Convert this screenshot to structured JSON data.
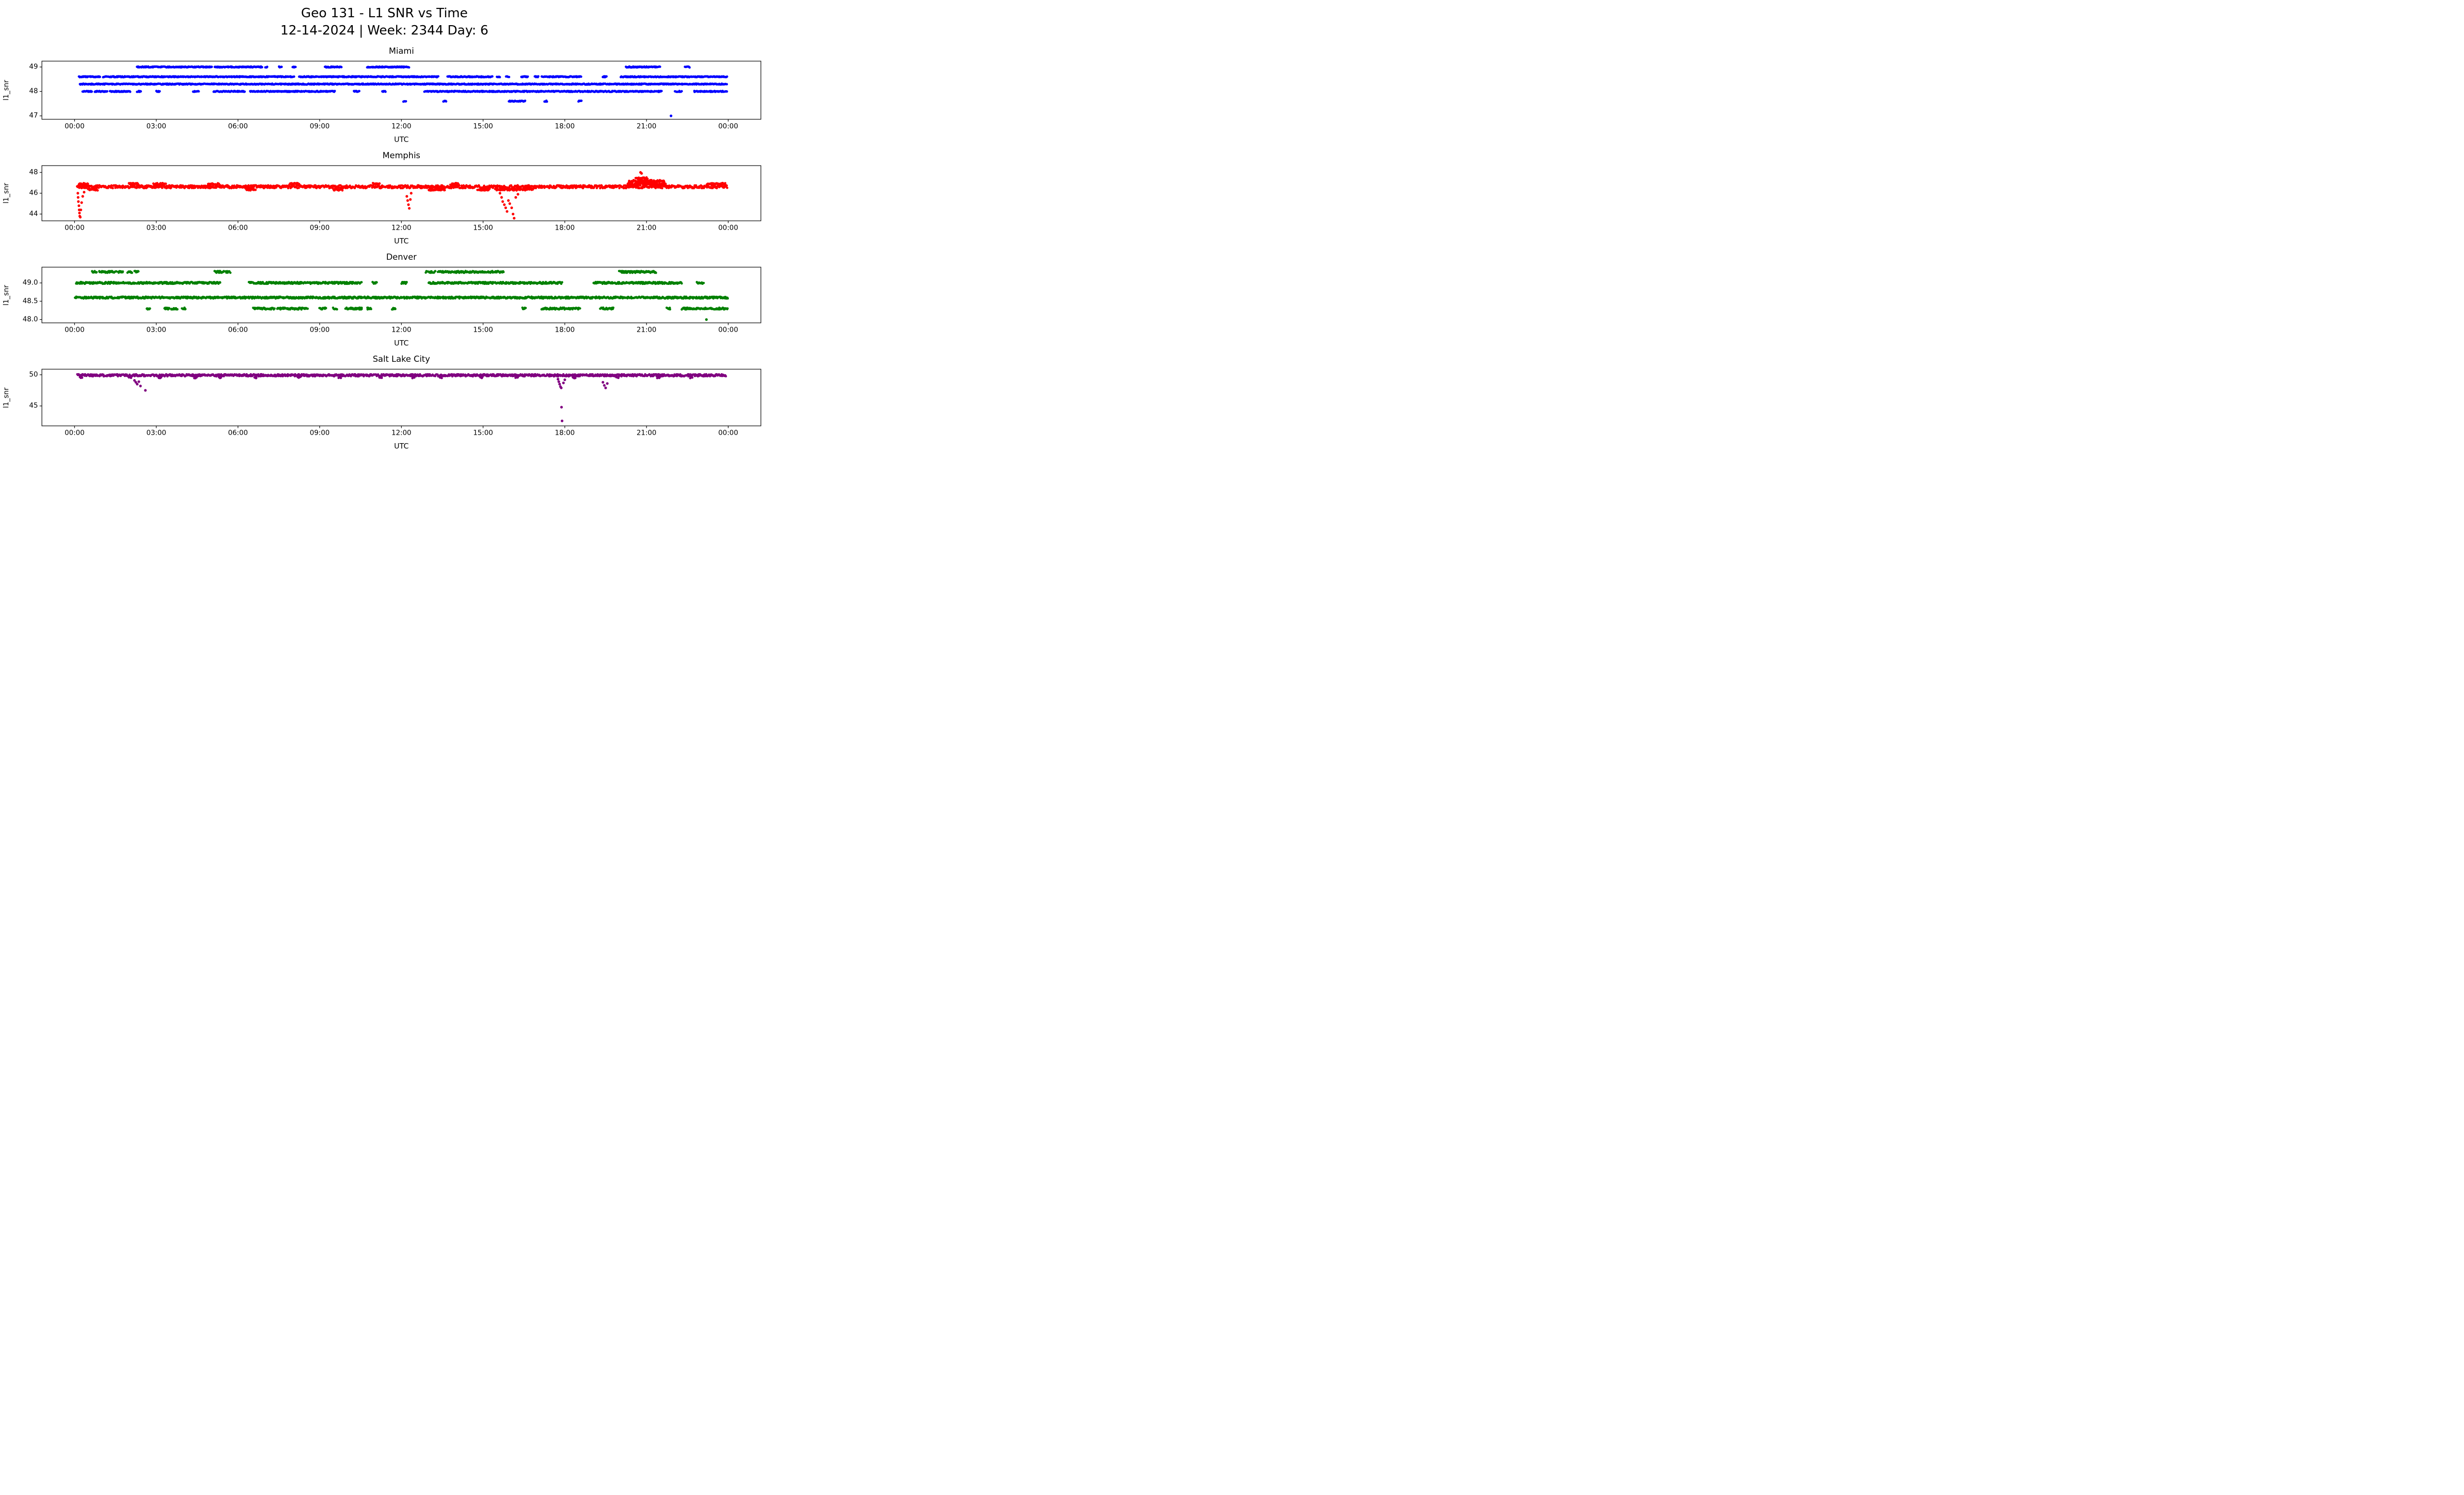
{
  "figure": {
    "title": "Geo 131 - L1 SNR vs Time",
    "subtitle": "12-14-2024 | Week: 2344 Day: 6"
  },
  "chart_data": [
    {
      "type": "scatter",
      "title": "Miami",
      "xlabel": "UTC",
      "ylabel": "l1_snr",
      "color": "#0000ff",
      "xlim": [
        -1.2,
        25.2
      ],
      "ylim": [
        46.86,
        49.24
      ],
      "xticks": [
        0,
        3,
        6,
        9,
        12,
        15,
        18,
        21,
        24
      ],
      "xtick_labels": [
        "00:00",
        "03:00",
        "06:00",
        "09:00",
        "12:00",
        "15:00",
        "18:00",
        "21:00",
        "00:00"
      ],
      "yticks": [
        47,
        48,
        49
      ],
      "ytick_labels": [
        "47",
        "48",
        "49"
      ],
      "legend": "none",
      "grid": false,
      "bands": [
        {
          "y": 49.0,
          "jitter": 0.02,
          "ranges": [
            [
              2.3,
              5.05
            ],
            [
              5.15,
              6.9
            ],
            [
              7.0,
              7.08
            ],
            [
              7.5,
              7.6
            ],
            [
              8.0,
              8.12
            ],
            [
              9.2,
              9.8
            ],
            [
              10.75,
              12.3
            ],
            [
              20.25,
              21.5
            ],
            [
              22.42,
              22.58
            ]
          ]
        },
        {
          "y": 48.6,
          "jitter": 0.02,
          "ranges": [
            [
              0.15,
              0.95
            ],
            [
              1.05,
              8.05
            ],
            [
              8.25,
              13.35
            ],
            [
              13.7,
              15.35
            ],
            [
              15.5,
              15.62
            ],
            [
              15.85,
              15.95
            ],
            [
              16.4,
              16.65
            ],
            [
              16.9,
              17.02
            ],
            [
              17.15,
              18.6
            ],
            [
              19.4,
              19.55
            ],
            [
              20.05,
              23.95
            ]
          ]
        },
        {
          "y": 48.3,
          "jitter": 0.02,
          "ranges": [
            [
              0.2,
              23.95
            ]
          ]
        },
        {
          "y": 48.0,
          "jitter": 0.02,
          "ranges": [
            [
              0.3,
              0.65
            ],
            [
              0.75,
              1.2
            ],
            [
              1.3,
              2.05
            ],
            [
              2.3,
              2.45
            ],
            [
              3.0,
              3.12
            ],
            [
              4.35,
              4.55
            ],
            [
              5.1,
              6.25
            ],
            [
              6.45,
              9.55
            ],
            [
              10.25,
              10.45
            ],
            [
              11.3,
              11.42
            ],
            [
              12.85,
              21.55
            ],
            [
              22.05,
              22.3
            ],
            [
              22.75,
              23.95
            ]
          ]
        },
        {
          "y": 47.6,
          "jitter": 0.02,
          "ranges": [
            [
              12.08,
              12.16
            ],
            [
              13.55,
              13.65
            ],
            [
              15.95,
              16.55
            ],
            [
              17.25,
              17.35
            ],
            [
              18.5,
              18.62
            ]
          ]
        }
      ],
      "points": [
        [
          21.9,
          47.0
        ]
      ]
    },
    {
      "type": "scatter",
      "title": "Memphis",
      "xlabel": "UTC",
      "ylabel": "l1_snr",
      "color": "#ff0000",
      "xlim": [
        -1.2,
        25.2
      ],
      "ylim": [
        43.35,
        48.65
      ],
      "xticks": [
        0,
        3,
        6,
        9,
        12,
        15,
        18,
        21,
        24
      ],
      "xtick_labels": [
        "00:00",
        "03:00",
        "06:00",
        "09:00",
        "12:00",
        "15:00",
        "18:00",
        "21:00",
        "00:00"
      ],
      "yticks": [
        44,
        46,
        48
      ],
      "ytick_labels": [
        "44",
        "46",
        "48"
      ],
      "legend": "none",
      "grid": false,
      "bands": [
        {
          "y": 46.62,
          "jitter": 0.14,
          "ranges": [
            [
              0.1,
              23.97
            ]
          ]
        },
        {
          "y": 46.88,
          "jitter": 0.1,
          "ranges": [
            [
              0.15,
              0.5
            ],
            [
              2.0,
              2.35
            ],
            [
              2.9,
              3.35
            ],
            [
              4.9,
              5.3
            ],
            [
              7.9,
              8.25
            ],
            [
              10.95,
              11.2
            ],
            [
              13.8,
              14.1
            ],
            [
              20.3,
              21.7
            ],
            [
              23.2,
              23.9
            ]
          ]
        },
        {
          "y": 46.35,
          "jitter": 0.09,
          "ranges": [
            [
              0.5,
              0.85
            ],
            [
              6.3,
              6.65
            ],
            [
              9.5,
              9.85
            ],
            [
              13.0,
              13.6
            ],
            [
              14.8,
              15.25
            ],
            [
              15.45,
              16.45
            ],
            [
              16.5,
              16.85
            ]
          ]
        },
        {
          "y": 47.15,
          "jitter": 0.12,
          "ranges": [
            [
              20.35,
              21.65
            ]
          ]
        },
        {
          "y": 47.45,
          "jitter": 0.08,
          "ranges": [
            [
              20.6,
              21.05
            ]
          ]
        }
      ],
      "points": [
        [
          0.12,
          46.0
        ],
        [
          0.13,
          45.6
        ],
        [
          0.14,
          45.2
        ],
        [
          0.16,
          44.8
        ],
        [
          0.17,
          44.4
        ],
        [
          0.18,
          44.1
        ],
        [
          0.19,
          43.8
        ],
        [
          0.21,
          43.7
        ],
        [
          0.23,
          44.4
        ],
        [
          0.26,
          45.1
        ],
        [
          0.3,
          45.7
        ],
        [
          0.35,
          46.1
        ],
        [
          12.2,
          45.7
        ],
        [
          12.23,
          45.3
        ],
        [
          12.26,
          44.9
        ],
        [
          12.29,
          44.55
        ],
        [
          12.33,
          45.4
        ],
        [
          12.36,
          46.0
        ],
        [
          15.62,
          46.0
        ],
        [
          15.68,
          45.6
        ],
        [
          15.72,
          45.2
        ],
        [
          15.78,
          44.9
        ],
        [
          15.83,
          44.6
        ],
        [
          15.88,
          44.25
        ],
        [
          15.93,
          45.3
        ],
        [
          15.98,
          45.0
        ],
        [
          16.05,
          44.6
        ],
        [
          16.1,
          44.0
        ],
        [
          16.14,
          43.6
        ],
        [
          16.2,
          45.6
        ],
        [
          16.28,
          45.9
        ],
        [
          20.78,
          48.0
        ],
        [
          20.82,
          47.9
        ]
      ]
    },
    {
      "type": "scatter",
      "title": "Denver",
      "xlabel": "UTC",
      "ylabel": "l1_snr",
      "color": "#008000",
      "xlim": [
        -1.2,
        25.2
      ],
      "ylim": [
        47.91,
        49.43
      ],
      "xticks": [
        0,
        3,
        6,
        9,
        12,
        15,
        18,
        21,
        24
      ],
      "xtick_labels": [
        "00:00",
        "03:00",
        "06:00",
        "09:00",
        "12:00",
        "15:00",
        "18:00",
        "21:00",
        "00:00"
      ],
      "yticks": [
        48.0,
        48.5,
        49.0
      ],
      "ytick_labels": [
        "48.0",
        "48.5",
        "49.0"
      ],
      "legend": "none",
      "grid": false,
      "bands": [
        {
          "y": 49.3,
          "jitter": 0.025,
          "ranges": [
            [
              0.65,
              0.82
            ],
            [
              0.9,
              1.55
            ],
            [
              1.6,
              1.8
            ],
            [
              1.95,
              2.12
            ],
            [
              2.2,
              2.35
            ],
            [
              5.15,
              5.5
            ],
            [
              5.55,
              5.72
            ],
            [
              12.9,
              13.25
            ],
            [
              13.35,
              15.75
            ],
            [
              20.0,
              21.15
            ],
            [
              21.2,
              21.35
            ]
          ]
        },
        {
          "y": 49.0,
          "jitter": 0.025,
          "ranges": [
            [
              0.05,
              5.35
            ],
            [
              6.4,
              10.55
            ],
            [
              10.95,
              11.1
            ],
            [
              12.0,
              12.2
            ],
            [
              13.0,
              17.9
            ],
            [
              19.05,
              22.3
            ],
            [
              22.85,
              23.1
            ]
          ]
        },
        {
          "y": 48.6,
          "jitter": 0.025,
          "ranges": [
            [
              0.02,
              23.98
            ]
          ]
        },
        {
          "y": 48.3,
          "jitter": 0.025,
          "ranges": [
            [
              2.65,
              2.78
            ],
            [
              3.3,
              3.48
            ],
            [
              3.55,
              3.78
            ],
            [
              3.95,
              4.08
            ],
            [
              6.55,
              7.35
            ],
            [
              7.45,
              8.55
            ],
            [
              9.0,
              9.25
            ],
            [
              9.5,
              9.65
            ],
            [
              9.95,
              10.55
            ],
            [
              10.75,
              10.9
            ],
            [
              11.65,
              11.78
            ],
            [
              16.45,
              16.58
            ],
            [
              17.15,
              18.55
            ],
            [
              19.3,
              19.78
            ],
            [
              21.75,
              21.88
            ],
            [
              22.3,
              23.98
            ]
          ]
        }
      ],
      "points": [
        [
          23.2,
          48.0
        ]
      ]
    },
    {
      "type": "scatter",
      "title": "Salt Lake City",
      "xlabel": "UTC",
      "ylabel": "l1_snr",
      "color": "#800080",
      "xlim": [
        -1.2,
        25.2
      ],
      "ylim": [
        41.8,
        50.9
      ],
      "xticks": [
        0,
        3,
        6,
        9,
        12,
        15,
        18,
        21,
        24
      ],
      "xtick_labels": [
        "00:00",
        "03:00",
        "06:00",
        "09:00",
        "12:00",
        "15:00",
        "18:00",
        "21:00",
        "00:00"
      ],
      "yticks": [
        45,
        50
      ],
      "ytick_labels": [
        "45",
        "50"
      ],
      "legend": "none",
      "grid": false,
      "bands": [
        {
          "y": 49.92,
          "jitter": 0.17,
          "ranges": [
            [
              0.1,
              23.92
            ]
          ]
        },
        {
          "y": 49.55,
          "jitter": 0.1,
          "ranges": [
            [
              0.2,
              0.28
            ],
            [
              2.0,
              2.08
            ],
            [
              3.1,
              3.18
            ],
            [
              4.4,
              4.48
            ],
            [
              5.3,
              5.38
            ],
            [
              6.6,
              6.68
            ],
            [
              8.2,
              8.28
            ],
            [
              9.7,
              9.78
            ],
            [
              11.2,
              11.28
            ],
            [
              12.4,
              12.48
            ],
            [
              13.4,
              13.48
            ],
            [
              14.9,
              14.98
            ],
            [
              16.2,
              16.28
            ],
            [
              18.3,
              18.38
            ],
            [
              19.9,
              19.98
            ],
            [
              21.4,
              21.48
            ],
            [
              22.6,
              22.68
            ]
          ]
        }
      ],
      "points": [
        [
          2.2,
          49.1
        ],
        [
          2.25,
          48.8
        ],
        [
          2.3,
          48.5
        ],
        [
          2.36,
          48.9
        ],
        [
          2.42,
          48.2
        ],
        [
          2.6,
          47.5
        ],
        [
          17.75,
          49.3
        ],
        [
          17.78,
          48.9
        ],
        [
          17.81,
          48.5
        ],
        [
          17.84,
          48.1
        ],
        [
          17.87,
          47.9
        ],
        [
          17.88,
          44.8
        ],
        [
          17.9,
          42.6
        ],
        [
          17.95,
          48.7
        ],
        [
          18.0,
          49.2
        ],
        [
          19.4,
          48.8
        ],
        [
          19.45,
          48.3
        ],
        [
          19.5,
          47.9
        ],
        [
          19.56,
          48.6
        ]
      ]
    }
  ]
}
